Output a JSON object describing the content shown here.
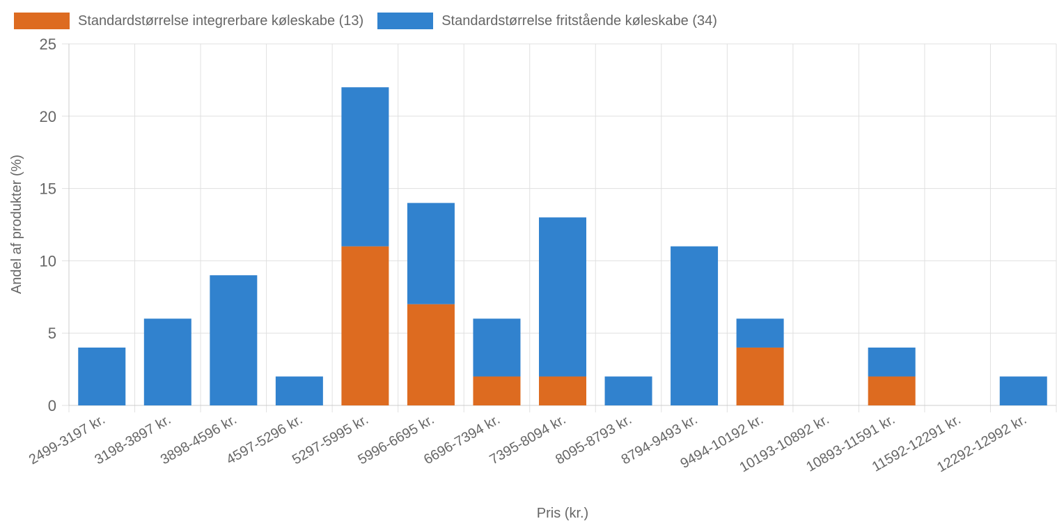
{
  "chart_data": {
    "type": "bar",
    "stacked": true,
    "xlabel": "Pris (kr.)",
    "ylabel": "Andel af produkter (%)",
    "ylim": [
      0,
      25
    ],
    "yticks": [
      0,
      5,
      10,
      15,
      20,
      25
    ],
    "grid": true,
    "legend_position": "top-left",
    "categories": [
      "2499-3197 kr.",
      "3198-3897 kr.",
      "3898-4596 kr.",
      "4597-5296 kr.",
      "5297-5995 kr.",
      "5996-6695 kr.",
      "6696-7394 kr.",
      "7395-8094 kr.",
      "8095-8793 kr.",
      "8794-9493 kr.",
      "9494-10192 kr.",
      "10193-10892 kr.",
      "10893-11591 kr.",
      "11592-12291 kr.",
      "12292-12992 kr."
    ],
    "series": [
      {
        "name": "Standardstørrelse integrerbare køleskabe (13)",
        "color": "#dd6b20",
        "values": [
          0,
          0,
          0,
          0,
          11,
          7,
          2,
          2,
          0,
          0,
          4,
          0,
          2,
          0,
          0
        ]
      },
      {
        "name": "Standardstørrelse fritstående køleskabe (34)",
        "color": "#3182ce",
        "values": [
          4,
          6,
          9,
          2,
          11,
          7,
          4,
          11,
          2,
          11,
          2,
          0,
          2,
          0,
          2
        ]
      }
    ]
  }
}
